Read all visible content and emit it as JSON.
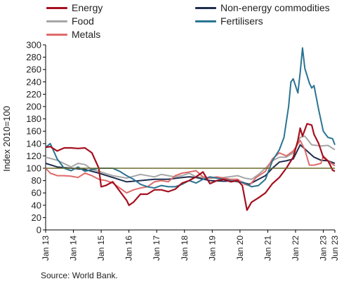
{
  "chart_data": {
    "type": "line",
    "title": "",
    "ylabel": "Index 2010=100",
    "xlabel": "",
    "ylim": [
      0,
      300
    ],
    "yticks": [
      0,
      20,
      40,
      60,
      80,
      100,
      120,
      140,
      160,
      180,
      200,
      220,
      240,
      260,
      280,
      300
    ],
    "xlim": [
      "2013-01",
      "2023-06"
    ],
    "xticks": [
      "Jan 13",
      "Jan 14",
      "Jan 15",
      "Jan 16",
      "Jan 17",
      "Jan 18",
      "Jan 19",
      "Jan 20",
      "Jan 21",
      "Jan 22",
      "Jan 23",
      "Jun 23"
    ],
    "xtick_dates": [
      "2013-01",
      "2014-01",
      "2015-01",
      "2016-01",
      "2017-01",
      "2018-01",
      "2019-01",
      "2020-01",
      "2021-01",
      "2022-01",
      "2023-01",
      "2023-06"
    ],
    "reference_line": {
      "y": 100,
      "color": "#6b6b2a"
    },
    "grid": false,
    "legend_position": "top",
    "series": [
      {
        "name": "Energy",
        "color": "#a50f1e",
        "points": [
          [
            "2013-01",
            134
          ],
          [
            "2013-03",
            135
          ],
          [
            "2013-06",
            128
          ],
          [
            "2013-09",
            133
          ],
          [
            "2013-12",
            133
          ],
          [
            "2014-03",
            132
          ],
          [
            "2014-06",
            133
          ],
          [
            "2014-09",
            125
          ],
          [
            "2014-12",
            100
          ],
          [
            "2015-01",
            70
          ],
          [
            "2015-03",
            72
          ],
          [
            "2015-06",
            78
          ],
          [
            "2015-09",
            63
          ],
          [
            "2015-12",
            48
          ],
          [
            "2016-01",
            40
          ],
          [
            "2016-03",
            45
          ],
          [
            "2016-06",
            58
          ],
          [
            "2016-09",
            58
          ],
          [
            "2016-12",
            65
          ],
          [
            "2017-03",
            65
          ],
          [
            "2017-06",
            62
          ],
          [
            "2017-09",
            66
          ],
          [
            "2017-12",
            76
          ],
          [
            "2018-03",
            80
          ],
          [
            "2018-06",
            86
          ],
          [
            "2018-09",
            94
          ],
          [
            "2018-12",
            75
          ],
          [
            "2019-03",
            80
          ],
          [
            "2019-06",
            82
          ],
          [
            "2019-09",
            78
          ],
          [
            "2019-12",
            80
          ],
          [
            "2020-02",
            72
          ],
          [
            "2020-03",
            52
          ],
          [
            "2020-04",
            32
          ],
          [
            "2020-06",
            45
          ],
          [
            "2020-09",
            52
          ],
          [
            "2020-12",
            60
          ],
          [
            "2021-03",
            75
          ],
          [
            "2021-06",
            85
          ],
          [
            "2021-09",
            100
          ],
          [
            "2021-12",
            118
          ],
          [
            "2022-02",
            145
          ],
          [
            "2022-03",
            165
          ],
          [
            "2022-04",
            152
          ],
          [
            "2022-06",
            172
          ],
          [
            "2022-08",
            170
          ],
          [
            "2022-09",
            155
          ],
          [
            "2022-11",
            140
          ],
          [
            "2023-01",
            118
          ],
          [
            "2023-03",
            112
          ],
          [
            "2023-04",
            105
          ],
          [
            "2023-05",
            97
          ],
          [
            "2023-06",
            95
          ]
        ]
      },
      {
        "name": "Non-energy commodities",
        "color": "#1f2d4e",
        "points": [
          [
            "2013-01",
            108
          ],
          [
            "2013-06",
            102
          ],
          [
            "2013-12",
            100
          ],
          [
            "2014-06",
            98
          ],
          [
            "2014-12",
            92
          ],
          [
            "2015-06",
            85
          ],
          [
            "2015-12",
            78
          ],
          [
            "2016-06",
            80
          ],
          [
            "2016-12",
            82
          ],
          [
            "2017-06",
            82
          ],
          [
            "2017-12",
            85
          ],
          [
            "2018-03",
            86
          ],
          [
            "2018-06",
            85
          ],
          [
            "2018-12",
            80
          ],
          [
            "2019-06",
            79
          ],
          [
            "2019-12",
            80
          ],
          [
            "2020-03",
            76
          ],
          [
            "2020-05",
            74
          ],
          [
            "2020-09",
            82
          ],
          [
            "2020-12",
            88
          ],
          [
            "2021-03",
            100
          ],
          [
            "2021-06",
            110
          ],
          [
            "2021-09",
            112
          ],
          [
            "2021-12",
            115
          ],
          [
            "2022-03",
            138
          ],
          [
            "2022-06",
            128
          ],
          [
            "2022-09",
            118
          ],
          [
            "2022-12",
            113
          ],
          [
            "2023-03",
            112
          ],
          [
            "2023-06",
            108
          ]
        ]
      },
      {
        "name": "Food",
        "color": "#a6a6a6",
        "points": [
          [
            "2013-01",
            118
          ],
          [
            "2013-06",
            113
          ],
          [
            "2013-12",
            102
          ],
          [
            "2014-03",
            108
          ],
          [
            "2014-06",
            106
          ],
          [
            "2014-09",
            98
          ],
          [
            "2014-12",
            95
          ],
          [
            "2015-06",
            88
          ],
          [
            "2015-12",
            84
          ],
          [
            "2016-06",
            90
          ],
          [
            "2016-12",
            86
          ],
          [
            "2017-03",
            90
          ],
          [
            "2017-06",
            88
          ],
          [
            "2017-09",
            86
          ],
          [
            "2017-12",
            88
          ],
          [
            "2018-03",
            92
          ],
          [
            "2018-06",
            86
          ],
          [
            "2018-12",
            84
          ],
          [
            "2019-06",
            85
          ],
          [
            "2019-12",
            88
          ],
          [
            "2020-03",
            84
          ],
          [
            "2020-06",
            82
          ],
          [
            "2020-09",
            90
          ],
          [
            "2020-12",
            100
          ],
          [
            "2021-03",
            112
          ],
          [
            "2021-06",
            118
          ],
          [
            "2021-09",
            118
          ],
          [
            "2021-12",
            125
          ],
          [
            "2022-03",
            150
          ],
          [
            "2022-05",
            152
          ],
          [
            "2022-08",
            138
          ],
          [
            "2022-12",
            136
          ],
          [
            "2023-03",
            137
          ],
          [
            "2023-06",
            130
          ]
        ]
      },
      {
        "name": "Fertilisers",
        "color": "#2a7391",
        "points": [
          [
            "2013-01",
            134
          ],
          [
            "2013-03",
            140
          ],
          [
            "2013-06",
            115
          ],
          [
            "2013-09",
            100
          ],
          [
            "2013-12",
            96
          ],
          [
            "2014-03",
            102
          ],
          [
            "2014-06",
            95
          ],
          [
            "2014-09",
            98
          ],
          [
            "2014-12",
            100
          ],
          [
            "2015-06",
            100
          ],
          [
            "2015-09",
            95
          ],
          [
            "2015-12",
            88
          ],
          [
            "2016-03",
            82
          ],
          [
            "2016-06",
            74
          ],
          [
            "2016-09",
            70
          ],
          [
            "2016-12",
            68
          ],
          [
            "2017-03",
            72
          ],
          [
            "2017-06",
            70
          ],
          [
            "2017-09",
            70
          ],
          [
            "2017-12",
            74
          ],
          [
            "2018-03",
            80
          ],
          [
            "2018-06",
            76
          ],
          [
            "2018-09",
            82
          ],
          [
            "2018-12",
            86
          ],
          [
            "2019-03",
            84
          ],
          [
            "2019-06",
            82
          ],
          [
            "2019-09",
            80
          ],
          [
            "2019-12",
            78
          ],
          [
            "2020-03",
            76
          ],
          [
            "2020-06",
            70
          ],
          [
            "2020-09",
            72
          ],
          [
            "2020-12",
            82
          ],
          [
            "2021-03",
            112
          ],
          [
            "2021-06",
            130
          ],
          [
            "2021-08",
            150
          ],
          [
            "2021-10",
            200
          ],
          [
            "2021-11",
            240
          ],
          [
            "2021-12",
            245
          ],
          [
            "2022-02",
            222
          ],
          [
            "2022-03",
            255
          ],
          [
            "2022-04",
            295
          ],
          [
            "2022-05",
            262
          ],
          [
            "2022-07",
            238
          ],
          [
            "2022-08",
            230
          ],
          [
            "2022-09",
            234
          ],
          [
            "2022-11",
            195
          ],
          [
            "2023-01",
            160
          ],
          [
            "2023-03",
            150
          ],
          [
            "2023-05",
            148
          ],
          [
            "2023-06",
            138
          ]
        ]
      },
      {
        "name": "Metals",
        "color": "#e06a6a",
        "points": [
          [
            "2013-01",
            100
          ],
          [
            "2013-03",
            92
          ],
          [
            "2013-06",
            88
          ],
          [
            "2013-09",
            88
          ],
          [
            "2013-12",
            87
          ],
          [
            "2014-03",
            85
          ],
          [
            "2014-06",
            92
          ],
          [
            "2014-09",
            88
          ],
          [
            "2014-12",
            82
          ],
          [
            "2015-03",
            80
          ],
          [
            "2015-06",
            76
          ],
          [
            "2015-09",
            68
          ],
          [
            "2015-12",
            60
          ],
          [
            "2016-03",
            65
          ],
          [
            "2016-06",
            68
          ],
          [
            "2016-09",
            70
          ],
          [
            "2016-12",
            78
          ],
          [
            "2017-03",
            80
          ],
          [
            "2017-06",
            78
          ],
          [
            "2017-09",
            88
          ],
          [
            "2017-12",
            92
          ],
          [
            "2018-03",
            94
          ],
          [
            "2018-06",
            96
          ],
          [
            "2018-09",
            86
          ],
          [
            "2018-12",
            84
          ],
          [
            "2019-03",
            86
          ],
          [
            "2019-06",
            84
          ],
          [
            "2019-09",
            82
          ],
          [
            "2019-12",
            82
          ],
          [
            "2020-03",
            74
          ],
          [
            "2020-05",
            72
          ],
          [
            "2020-08",
            85
          ],
          [
            "2020-12",
            95
          ],
          [
            "2021-03",
            115
          ],
          [
            "2021-06",
            125
          ],
          [
            "2021-09",
            120
          ],
          [
            "2021-12",
            128
          ],
          [
            "2022-03",
            145
          ],
          [
            "2022-05",
            130
          ],
          [
            "2022-07",
            105
          ],
          [
            "2022-09",
            105
          ],
          [
            "2022-12",
            108
          ],
          [
            "2023-01",
            120
          ],
          [
            "2023-03",
            112
          ],
          [
            "2023-06",
            104
          ]
        ]
      }
    ]
  },
  "source": "Source: World Bank."
}
